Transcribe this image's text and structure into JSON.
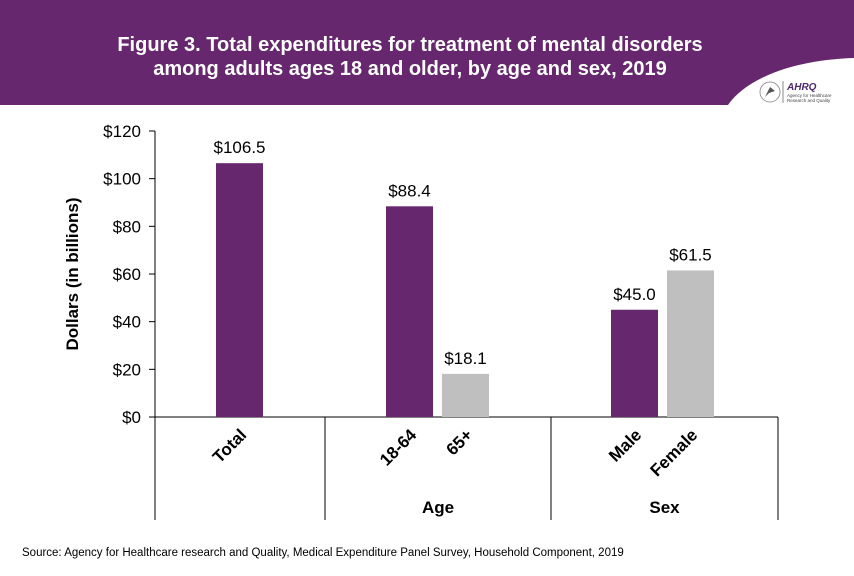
{
  "header": {
    "title_line1": "Figure 3. Total expenditures for treatment of mental disorders",
    "title_line2": "among adults ages 18 and older, by age and sex, 2019",
    "logo_text": "AHRQ Agency for Healthcare Research and Quality",
    "band_color": "#66276f"
  },
  "source": "Source: Agency for Healthcare research and Quality, Medical Expenditure Panel Survey,  Household Component, 2019",
  "chart_data": {
    "type": "bar",
    "title": "Figure 3. Total expenditures for treatment of mental disorders among adults ages 18 and older, by age and sex, 2019",
    "ylabel": "Dollars (in billions)",
    "ylim": [
      0,
      120
    ],
    "yticks": [
      "$0",
      "$20",
      "$40",
      "$60",
      "$80",
      "$100",
      "$120"
    ],
    "grid": false,
    "groups": [
      {
        "label": "",
        "bars": [
          {
            "category": "Total",
            "value": 106.5,
            "label": "$106.5",
            "color": "#66276f"
          }
        ]
      },
      {
        "label": "Age",
        "bars": [
          {
            "category": "18-64",
            "value": 88.4,
            "label": "$88.4",
            "color": "#66276f"
          },
          {
            "category": "65+",
            "value": 18.1,
            "label": "$18.1",
            "color": "#bfbfbf"
          }
        ]
      },
      {
        "label": "Sex",
        "bars": [
          {
            "category": "Male",
            "value": 45.0,
            "label": "$45.0",
            "color": "#66276f"
          },
          {
            "category": "Female",
            "value": 61.5,
            "label": "$61.5",
            "color": "#bfbfbf"
          }
        ]
      }
    ]
  }
}
